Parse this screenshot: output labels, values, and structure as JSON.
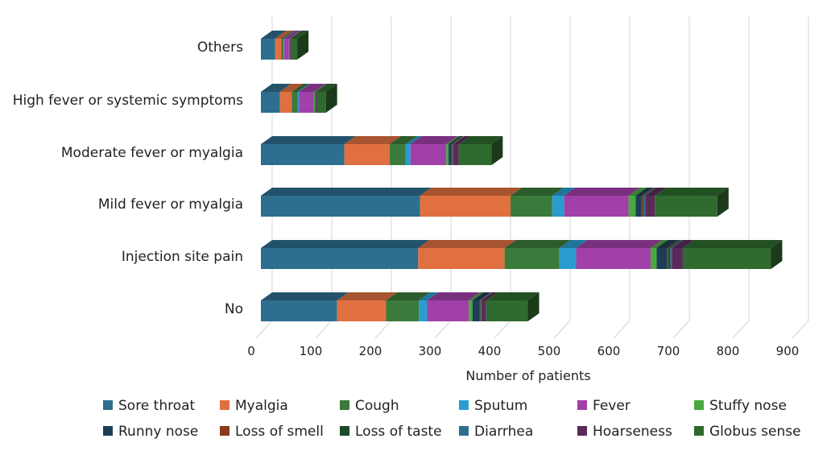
{
  "chart_data": {
    "type": "bar",
    "orientation": "horizontal",
    "stacked": true,
    "style": "3d",
    "title": "",
    "xlabel": "Number of patients",
    "ylabel": "",
    "xlim": [
      0,
      900
    ],
    "x_ticks": [
      "0",
      "100",
      "200",
      "300",
      "400",
      "500",
      "600",
      "700",
      "800",
      "900"
    ],
    "grid": true,
    "legend_position": "bottom",
    "categories": [
      "Others",
      "High fever or systemic symptoms",
      "Moderate fever or myalgia",
      "Mild fever or myalgia",
      "Injection site pain",
      "No"
    ],
    "series": [
      {
        "name": "Sore throat",
        "color": "#2e6e8e",
        "values": [
          24,
          32,
          140,
          267,
          264,
          128
        ]
      },
      {
        "name": "Myalgia",
        "color": "#e07040",
        "values": [
          10,
          20,
          76,
          152,
          145,
          82
        ]
      },
      {
        "name": "Cough",
        "color": "#3a7a3a",
        "values": [
          4,
          10,
          27,
          70,
          92,
          55
        ]
      },
      {
        "name": "Sputum",
        "color": "#2a9cd0",
        "values": [
          1,
          2,
          8,
          20,
          28,
          14
        ]
      },
      {
        "name": "Fever",
        "color": "#a040a8",
        "values": [
          8,
          25,
          60,
          108,
          125,
          70
        ]
      },
      {
        "name": "Stuffy nose",
        "color": "#4aa840",
        "values": [
          1,
          2,
          4,
          12,
          10,
          6
        ]
      },
      {
        "name": "Runny nose",
        "color": "#1e3e56",
        "values": [
          1,
          1,
          5,
          10,
          18,
          12
        ]
      },
      {
        "name": "Loss of smell",
        "color": "#8a3a1a",
        "values": [
          0,
          0,
          1,
          2,
          2,
          1
        ]
      },
      {
        "name": "Loss of taste",
        "color": "#1a4a2a",
        "values": [
          0,
          0,
          1,
          2,
          3,
          1
        ]
      },
      {
        "name": "Diarrhea",
        "color": "#2e6e8e",
        "values": [
          0,
          0,
          1,
          2,
          3,
          1
        ]
      },
      {
        "name": "Hoarseness",
        "color": "#5a2a5a",
        "values": [
          2,
          2,
          9,
          16,
          18,
          8
        ]
      },
      {
        "name": "Globus sense",
        "color": "#2f6a2f",
        "values": [
          10,
          15,
          55,
          105,
          148,
          70
        ]
      }
    ]
  }
}
